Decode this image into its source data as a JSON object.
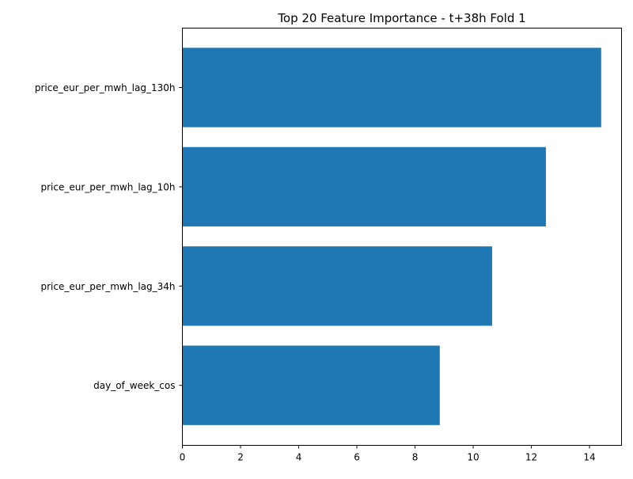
{
  "chart_data": {
    "type": "bar",
    "orientation": "horizontal",
    "title": "Top 20 Feature Importance - t+38h Fold 1",
    "xlabel": "",
    "ylabel": "",
    "categories": [
      "price_eur_per_mwh_lag_130h",
      "price_eur_per_mwh_lag_10h",
      "price_eur_per_mwh_lag_34h",
      "day_of_week_cos"
    ],
    "values": [
      14.4,
      12.5,
      10.65,
      8.85
    ],
    "xlim": [
      0,
      15.1
    ],
    "xticks": [
      "0",
      "2",
      "4",
      "6",
      "8",
      "10",
      "12",
      "14"
    ],
    "grid": false,
    "legend": "none",
    "colors": {
      "bar": "#1f77b4",
      "axis": "#000000",
      "background": "#ffffff"
    }
  }
}
